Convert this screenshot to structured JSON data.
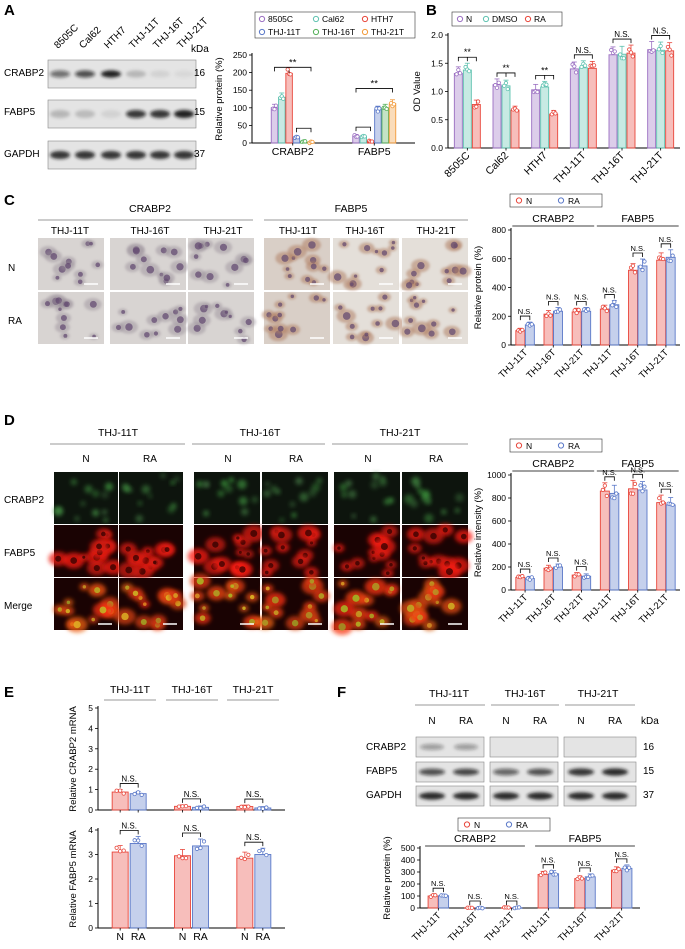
{
  "colors": {
    "purple": "#9b6fc2",
    "teal": "#5fc2b0",
    "red": "#e8463b",
    "blue": "#5a78c8",
    "green": "#55b05a",
    "orange": "#f29a3a",
    "red_fill": "#f7c9c4",
    "blue_fill": "#c6d3ee"
  },
  "panels": {
    "A": "A",
    "B": "B",
    "C": "C",
    "D": "D",
    "E": "E",
    "F": "F"
  },
  "labels": {
    "kda": "kDa",
    "crabp2": "CRABP2",
    "fabp5": "FABP5",
    "gapdh": "GAPDH",
    "merge": "Merge",
    "n": "N",
    "ra": "RA",
    "dmso": "DMSO",
    "ns": "N.S.",
    "sig": "**",
    "t11": "THJ-11T",
    "t16": "THJ-16T",
    "t21": "THJ-21T"
  },
  "panel_a": {
    "lanes": [
      "8505C",
      "Cal62",
      "HTH7",
      "THJ-11T",
      "THJ-16T",
      "THJ-21T"
    ],
    "markers": [
      "16",
      "15",
      "37"
    ]
  },
  "panel_f": {
    "markers": [
      "16",
      "15",
      "37"
    ]
  },
  "chart_data": [
    {
      "id": "A",
      "type": "bar",
      "ylabel": "Relative protein (%)",
      "ylim": [
        0,
        250
      ],
      "yticks": [
        0,
        50,
        100,
        150,
        200,
        250
      ],
      "categories": [
        "CRABP2",
        "FABP5"
      ],
      "series": [
        {
          "name": "8505C",
          "color": "#9b6fc2",
          "values": [
            100,
            20
          ]
        },
        {
          "name": "Cal62",
          "color": "#5fc2b0",
          "values": [
            130,
            18
          ]
        },
        {
          "name": "HTH7",
          "color": "#e8463b",
          "values": [
            198,
            5
          ]
        },
        {
          "name": "THJ-11T",
          "color": "#5a78c8",
          "values": [
            15,
            95
          ]
        },
        {
          "name": "THJ-16T",
          "color": "#55b05a",
          "values": [
            4,
            100
          ]
        },
        {
          "name": "THJ-21T",
          "color": "#f29a3a",
          "values": [
            2,
            112
          ]
        }
      ]
    },
    {
      "id": "B",
      "type": "bar",
      "ylabel": "OD Value",
      "ylim": [
        0,
        2.0
      ],
      "yticks": [
        0.0,
        0.5,
        1.0,
        1.5,
        2.0
      ],
      "categories": [
        "8505C",
        "Cal62",
        "HTH7",
        "THJ-11T",
        "THJ-16T",
        "THJ-21T"
      ],
      "series": [
        {
          "name": "N",
          "color": "#9b6fc2",
          "values": [
            1.32,
            1.12,
            1.03,
            1.4,
            1.65,
            1.74
          ]
        },
        {
          "name": "DMSO",
          "color": "#5fc2b0",
          "values": [
            1.38,
            1.1,
            1.08,
            1.42,
            1.66,
            1.73
          ]
        },
        {
          "name": "RA",
          "color": "#e8463b",
          "values": [
            0.77,
            0.67,
            0.6,
            1.41,
            1.68,
            1.72
          ]
        }
      ],
      "annotations": [
        "**",
        "**",
        "**",
        "N.S.",
        "N.S.",
        "N.S."
      ]
    },
    {
      "id": "C",
      "type": "bar",
      "ylabel": "Relative protein (%)",
      "ylim": [
        0,
        800
      ],
      "yticks": [
        0,
        200,
        400,
        600,
        800
      ],
      "groups": [
        "CRABP2",
        "FABP5"
      ],
      "categories": [
        "THJ-11T",
        "THJ-16T",
        "THJ-21T",
        "THJ-11T",
        "THJ-16T",
        "THJ-21T"
      ],
      "series": [
        {
          "name": "N",
          "color": "#e8463b",
          "values": [
            100,
            215,
            230,
            250,
            520,
            590
          ]
        },
        {
          "name": "RA",
          "color": "#5a78c8",
          "values": [
            140,
            235,
            235,
            280,
            550,
            610
          ]
        }
      ],
      "annotations": [
        "N.S.",
        "N.S.",
        "N.S.",
        "N.S.",
        "N.S.",
        "N.S."
      ]
    },
    {
      "id": "D",
      "type": "bar",
      "ylabel": "Relative intensity (%)",
      "ylim": [
        0,
        1000
      ],
      "yticks": [
        0,
        200,
        400,
        600,
        800,
        1000
      ],
      "groups": [
        "CRABP2",
        "FABP5"
      ],
      "categories": [
        "THJ-11T",
        "THJ-16T",
        "THJ-21T",
        "THJ-11T",
        "THJ-16T",
        "THJ-21T"
      ],
      "series": [
        {
          "name": "N",
          "color": "#e8463b",
          "values": [
            110,
            190,
            130,
            860,
            880,
            760
          ]
        },
        {
          "name": "RA",
          "color": "#5a78c8",
          "values": [
            100,
            200,
            120,
            840,
            870,
            740
          ]
        }
      ],
      "annotations": [
        "N.S.",
        "N.S.",
        "N.S.",
        "N.S.",
        "N.S.",
        "N.S."
      ]
    },
    {
      "id": "E1",
      "type": "bar",
      "ylabel": "Relative CRABP2 mRNA",
      "ylim": [
        0,
        5
      ],
      "yticks": [
        0,
        1,
        2,
        3,
        4,
        5
      ],
      "categories": [
        "N",
        "RA",
        "N",
        "RA",
        "N",
        "RA"
      ],
      "series": [
        {
          "name": "",
          "values": [
            0.88,
            0.8,
            0.18,
            0.13,
            0.17,
            0.1
          ]
        }
      ],
      "annotations": [
        "N.S.",
        "N.S.",
        "N.S."
      ]
    },
    {
      "id": "E2",
      "type": "bar",
      "ylabel": "Relative FABP5 mRNA",
      "ylim": [
        0,
        4
      ],
      "yticks": [
        0,
        1,
        2,
        3,
        4
      ],
      "categories": [
        "N",
        "RA",
        "N",
        "RA",
        "N",
        "RA"
      ],
      "series": [
        {
          "name": "",
          "values": [
            3.1,
            3.45,
            2.95,
            3.35,
            2.85,
            3.0
          ]
        }
      ],
      "annotations": [
        "N.S.",
        "N.S.",
        "N.S."
      ]
    },
    {
      "id": "F",
      "type": "bar",
      "ylabel": "Relative protein (%)",
      "ylim": [
        0,
        500
      ],
      "yticks": [
        0,
        100,
        200,
        300,
        400,
        500
      ],
      "groups": [
        "CRABP2",
        "FABP5"
      ],
      "categories": [
        "THJ-11T",
        "THJ-16T",
        "THJ-21T",
        "THJ-11T",
        "THJ-16T",
        "THJ-21T"
      ],
      "series": [
        {
          "name": "N",
          "color": "#e8463b",
          "values": [
            100,
            2,
            2,
            280,
            245,
            315
          ]
        },
        {
          "name": "RA",
          "color": "#5a78c8",
          "values": [
            102,
            2,
            2,
            285,
            260,
            330
          ]
        }
      ],
      "annotations": [
        "N.S.",
        "N.S.",
        "N.S.",
        "N.S.",
        "N.S.",
        "N.S."
      ]
    }
  ]
}
